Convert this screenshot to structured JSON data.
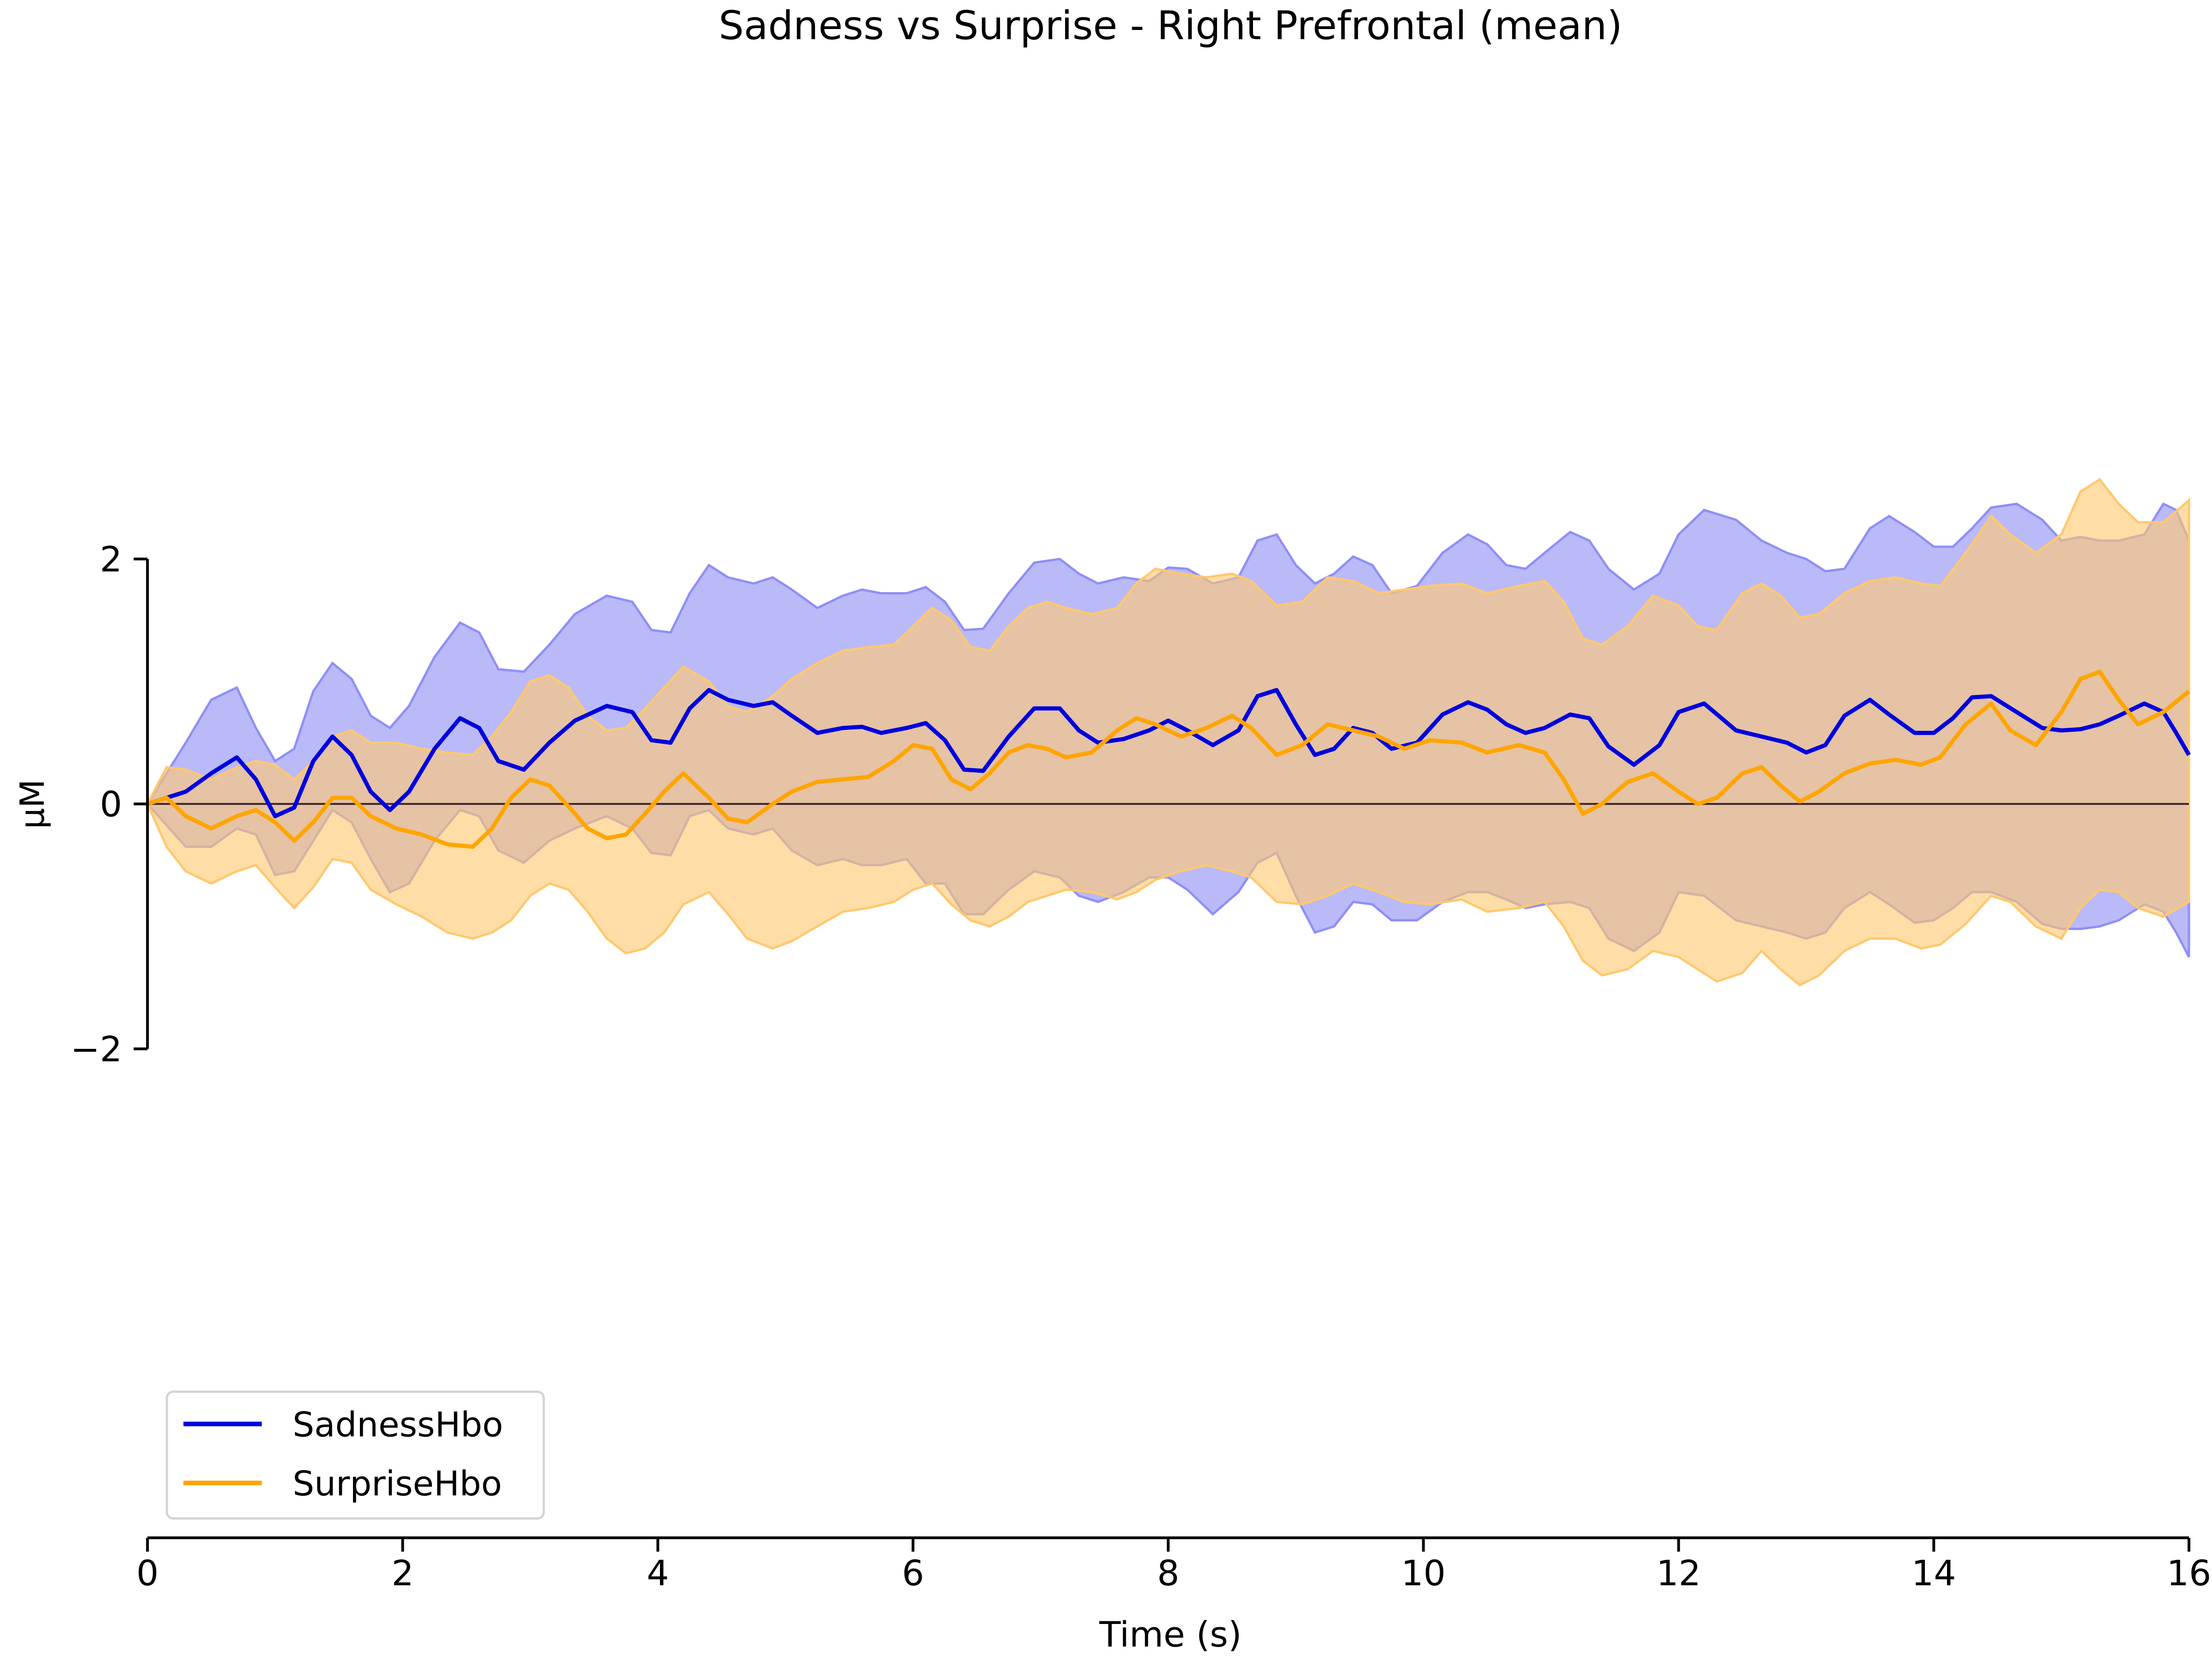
{
  "chart_data": {
    "type": "line",
    "title": "Sadness vs Surprise - Right Prefrontal (mean)",
    "xlabel": "Time (s)",
    "ylabel": "µM",
    "xlim": [
      0,
      16
    ],
    "ylim": [
      -2,
      2
    ],
    "xticks": [
      0,
      2,
      4,
      6,
      8,
      10,
      12,
      14,
      16
    ],
    "yticks": [
      -2,
      0,
      2
    ],
    "ytick_labels": [
      "−2",
      "0",
      "2"
    ],
    "legend_position": "bottom-left",
    "grid": false,
    "zero_line": true,
    "colors": {
      "sadness_line": "#0000dd",
      "sadness_band": "#8f8ff6",
      "surprise_line": "#ffa500",
      "surprise_band": "#ffc870",
      "zero_line": "#3a1f2a"
    },
    "series": [
      {
        "name": "SadnessHbo",
        "x": [
          0,
          0.3,
          0.5,
          0.7,
          0.85,
          1.0,
          1.15,
          1.3,
          1.45,
          1.6,
          1.75,
          1.9,
          2.05,
          2.25,
          2.45,
          2.6,
          2.75,
          2.95,
          3.15,
          3.35,
          3.6,
          3.8,
          3.95,
          4.1,
          4.25,
          4.4,
          4.55,
          4.75,
          4.9,
          5.05,
          5.25,
          5.45,
          5.6,
          5.75,
          5.95,
          6.1,
          6.25,
          6.4,
          6.55,
          6.75,
          6.95,
          7.15,
          7.3,
          7.45,
          7.65,
          7.85,
          8.0,
          8.15,
          8.35,
          8.55,
          8.7,
          8.85,
          9.0,
          9.15,
          9.3,
          9.45,
          9.6,
          9.75,
          9.95,
          10.15,
          10.35,
          10.5,
          10.65,
          10.8,
          10.95,
          11.15,
          11.3,
          11.45,
          11.65,
          11.85,
          12.0,
          12.2,
          12.45,
          12.65,
          12.85,
          13.0,
          13.15,
          13.3,
          13.5,
          13.65,
          13.85,
          14.0,
          14.15,
          14.3,
          14.45,
          14.65,
          14.85,
          15.0,
          15.15,
          15.3,
          15.45,
          15.65,
          15.8,
          15.9,
          16.0
        ],
        "y": [
          0,
          0.1,
          0.25,
          0.38,
          0.2,
          -0.1,
          -0.03,
          0.35,
          0.55,
          0.4,
          0.1,
          -0.05,
          0.1,
          0.45,
          0.7,
          0.62,
          0.35,
          0.28,
          0.5,
          0.68,
          0.8,
          0.75,
          0.52,
          0.5,
          0.78,
          0.93,
          0.85,
          0.8,
          0.83,
          0.72,
          0.58,
          0.62,
          0.63,
          0.58,
          0.62,
          0.66,
          0.52,
          0.28,
          0.27,
          0.55,
          0.78,
          0.78,
          0.6,
          0.5,
          0.53,
          0.6,
          0.68,
          0.6,
          0.48,
          0.6,
          0.88,
          0.93,
          0.65,
          0.4,
          0.45,
          0.62,
          0.58,
          0.45,
          0.5,
          0.73,
          0.83,
          0.77,
          0.65,
          0.58,
          0.62,
          0.73,
          0.7,
          0.47,
          0.32,
          0.48,
          0.75,
          0.82,
          0.6,
          0.55,
          0.5,
          0.42,
          0.48,
          0.72,
          0.85,
          0.73,
          0.58,
          0.58,
          0.7,
          0.87,
          0.88,
          0.75,
          0.62,
          0.6,
          0.61,
          0.65,
          0.72,
          0.82,
          0.75,
          0.58,
          0.4
        ],
        "lower": [
          0,
          -0.35,
          -0.35,
          -0.2,
          -0.25,
          -0.58,
          -0.55,
          -0.3,
          -0.05,
          -0.15,
          -0.45,
          -0.72,
          -0.65,
          -0.3,
          -0.05,
          -0.1,
          -0.38,
          -0.48,
          -0.3,
          -0.2,
          -0.1,
          -0.2,
          -0.4,
          -0.42,
          -0.1,
          -0.05,
          -0.2,
          -0.25,
          -0.2,
          -0.38,
          -0.5,
          -0.45,
          -0.5,
          -0.5,
          -0.45,
          -0.65,
          -0.65,
          -0.9,
          -0.9,
          -0.7,
          -0.55,
          -0.6,
          -0.75,
          -0.8,
          -0.72,
          -0.6,
          -0.6,
          -0.7,
          -0.9,
          -0.72,
          -0.48,
          -0.4,
          -0.75,
          -1.05,
          -1.0,
          -0.8,
          -0.82,
          -0.95,
          -0.95,
          -0.8,
          -0.72,
          -0.72,
          -0.78,
          -0.85,
          -0.82,
          -0.8,
          -0.85,
          -1.1,
          -1.2,
          -1.05,
          -0.72,
          -0.75,
          -0.95,
          -1.0,
          -1.05,
          -1.1,
          -1.05,
          -0.85,
          -0.72,
          -0.82,
          -0.97,
          -0.95,
          -0.85,
          -0.72,
          -0.72,
          -0.8,
          -0.98,
          -1.02,
          -1.02,
          -1.0,
          -0.95,
          -0.82,
          -0.88,
          -1.05,
          -1.25
        ],
        "upper": [
          0,
          0.5,
          0.85,
          0.95,
          0.62,
          0.35,
          0.45,
          0.92,
          1.15,
          1.02,
          0.72,
          0.62,
          0.8,
          1.2,
          1.48,
          1.4,
          1.1,
          1.08,
          1.3,
          1.55,
          1.7,
          1.65,
          1.42,
          1.4,
          1.72,
          1.95,
          1.85,
          1.8,
          1.85,
          1.75,
          1.6,
          1.7,
          1.75,
          1.72,
          1.72,
          1.77,
          1.65,
          1.42,
          1.43,
          1.72,
          1.97,
          2.0,
          1.88,
          1.8,
          1.85,
          1.82,
          1.93,
          1.92,
          1.8,
          1.85,
          2.15,
          2.2,
          1.95,
          1.8,
          1.88,
          2.02,
          1.95,
          1.72,
          1.78,
          2.05,
          2.2,
          2.12,
          1.95,
          1.92,
          2.05,
          2.22,
          2.15,
          1.92,
          1.75,
          1.88,
          2.2,
          2.4,
          2.32,
          2.15,
          2.05,
          2.0,
          1.9,
          1.92,
          2.25,
          2.35,
          2.22,
          2.1,
          2.1,
          2.25,
          2.42,
          2.45,
          2.32,
          2.15,
          2.18,
          2.15,
          2.15,
          2.2,
          2.45,
          2.4,
          2.15
        ]
      },
      {
        "name": "SurpriseHbo",
        "x": [
          0,
          0.15,
          0.3,
          0.5,
          0.7,
          0.85,
          1.0,
          1.15,
          1.3,
          1.45,
          1.6,
          1.75,
          1.95,
          2.15,
          2.35,
          2.55,
          2.7,
          2.85,
          3.0,
          3.15,
          3.3,
          3.45,
          3.6,
          3.75,
          3.9,
          4.05,
          4.2,
          4.4,
          4.55,
          4.7,
          4.9,
          5.05,
          5.25,
          5.45,
          5.65,
          5.85,
          6.0,
          6.15,
          6.3,
          6.45,
          6.6,
          6.75,
          6.9,
          7.05,
          7.2,
          7.4,
          7.6,
          7.75,
          7.9,
          8.1,
          8.3,
          8.5,
          8.65,
          8.85,
          9.05,
          9.25,
          9.45,
          9.65,
          9.85,
          10.05,
          10.3,
          10.5,
          10.75,
          10.95,
          11.1,
          11.25,
          11.4,
          11.6,
          11.8,
          12.0,
          12.15,
          12.3,
          12.5,
          12.65,
          12.8,
          12.95,
          13.1,
          13.3,
          13.5,
          13.7,
          13.9,
          14.05,
          14.25,
          14.45,
          14.6,
          14.8,
          15.0,
          15.15,
          15.3,
          15.45,
          15.6,
          15.8,
          16.0
        ],
        "y": [
          0,
          0.05,
          -0.1,
          -0.2,
          -0.1,
          -0.05,
          -0.15,
          -0.3,
          -0.15,
          0.05,
          0.05,
          -0.1,
          -0.2,
          -0.25,
          -0.33,
          -0.35,
          -0.2,
          0.05,
          0.2,
          0.15,
          -0.02,
          -0.2,
          -0.28,
          -0.25,
          -0.08,
          0.1,
          0.25,
          0.05,
          -0.12,
          -0.15,
          0.0,
          0.1,
          0.18,
          0.2,
          0.22,
          0.35,
          0.48,
          0.45,
          0.2,
          0.12,
          0.25,
          0.42,
          0.48,
          0.45,
          0.38,
          0.42,
          0.6,
          0.7,
          0.65,
          0.55,
          0.62,
          0.72,
          0.62,
          0.4,
          0.48,
          0.65,
          0.6,
          0.55,
          0.45,
          0.52,
          0.5,
          0.42,
          0.48,
          0.42,
          0.2,
          -0.08,
          0.0,
          0.18,
          0.25,
          0.1,
          0.0,
          0.05,
          0.25,
          0.3,
          0.15,
          0.02,
          0.1,
          0.25,
          0.33,
          0.36,
          0.32,
          0.38,
          0.65,
          0.82,
          0.6,
          0.48,
          0.75,
          1.02,
          1.08,
          0.85,
          0.65,
          0.75,
          0.92
        ],
        "lower": [
          0,
          -0.35,
          -0.55,
          -0.65,
          -0.55,
          -0.5,
          -0.68,
          -0.85,
          -0.68,
          -0.45,
          -0.48,
          -0.7,
          -0.82,
          -0.92,
          -1.05,
          -1.1,
          -1.05,
          -0.95,
          -0.75,
          -0.65,
          -0.7,
          -0.88,
          -1.1,
          -1.22,
          -1.18,
          -1.05,
          -0.82,
          -0.72,
          -0.9,
          -1.1,
          -1.18,
          -1.12,
          -1.0,
          -0.88,
          -0.85,
          -0.8,
          -0.7,
          -0.65,
          -0.82,
          -0.95,
          -1.0,
          -0.92,
          -0.8,
          -0.75,
          -0.7,
          -0.72,
          -0.78,
          -0.72,
          -0.62,
          -0.55,
          -0.5,
          -0.55,
          -0.6,
          -0.8,
          -0.82,
          -0.75,
          -0.65,
          -0.72,
          -0.8,
          -0.82,
          -0.78,
          -0.88,
          -0.85,
          -0.8,
          -1.0,
          -1.28,
          -1.4,
          -1.35,
          -1.2,
          -1.25,
          -1.35,
          -1.45,
          -1.38,
          -1.2,
          -1.35,
          -1.48,
          -1.4,
          -1.2,
          -1.1,
          -1.1,
          -1.18,
          -1.15,
          -0.98,
          -0.75,
          -0.8,
          -1.0,
          -1.1,
          -0.85,
          -0.7,
          -0.72,
          -0.85,
          -0.92,
          -0.8
        ],
        "upper": [
          0,
          0.3,
          0.28,
          0.2,
          0.3,
          0.35,
          0.32,
          0.2,
          0.35,
          0.55,
          0.6,
          0.5,
          0.5,
          0.45,
          0.42,
          0.4,
          0.55,
          0.75,
          1.0,
          1.05,
          0.95,
          0.72,
          0.6,
          0.62,
          0.78,
          0.95,
          1.12,
          1.0,
          0.8,
          0.75,
          0.88,
          1.02,
          1.15,
          1.25,
          1.28,
          1.3,
          1.45,
          1.6,
          1.5,
          1.28,
          1.25,
          1.45,
          1.6,
          1.65,
          1.6,
          1.55,
          1.6,
          1.8,
          1.92,
          1.88,
          1.85,
          1.88,
          1.82,
          1.62,
          1.65,
          1.85,
          1.82,
          1.72,
          1.75,
          1.78,
          1.8,
          1.72,
          1.78,
          1.82,
          1.65,
          1.35,
          1.3,
          1.45,
          1.7,
          1.62,
          1.45,
          1.42,
          1.72,
          1.8,
          1.7,
          1.52,
          1.55,
          1.72,
          1.82,
          1.85,
          1.8,
          1.78,
          2.05,
          2.35,
          2.2,
          2.05,
          2.2,
          2.55,
          2.65,
          2.45,
          2.3,
          2.3,
          2.48
        ]
      }
    ]
  }
}
